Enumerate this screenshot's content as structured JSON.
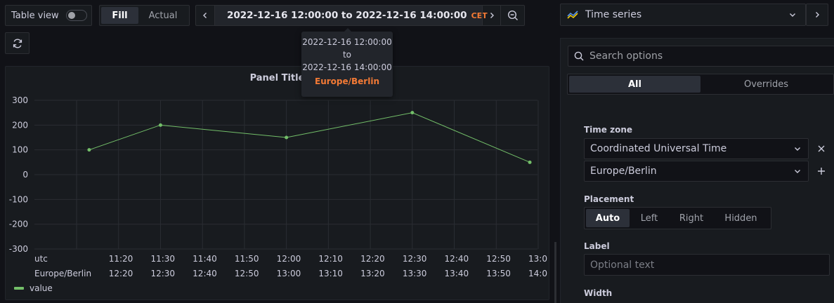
{
  "toolbar": {
    "table_view_label": "Table view",
    "fill_label": "Fill",
    "actual_label": "Actual",
    "time_range": "2022-12-16 12:00:00 to 2022-12-16 14:00:00",
    "tz_badge": "CET"
  },
  "tooltip": {
    "from": "2022-12-16 12:00:00",
    "to_word": "to",
    "to": "2022-12-16 14:00:00",
    "zone": "Europe/Berlin"
  },
  "panel": {
    "title": "Panel Title",
    "legend_label": "value",
    "tz_row1_name": "utc",
    "tz_row2_name": "Europe/Berlin",
    "tz_row1_ticks": [
      "11:20",
      "11:30",
      "11:40",
      "11:50",
      "12:00",
      "12:10",
      "12:20",
      "12:30",
      "12:40",
      "12:50",
      "13:0"
    ],
    "tz_row2_ticks": [
      "12:20",
      "12:30",
      "12:40",
      "12:50",
      "13:00",
      "13:10",
      "13:20",
      "13:30",
      "13:40",
      "13:50",
      "14:0"
    ]
  },
  "chart_data": {
    "type": "line",
    "title": "Panel Title",
    "x": [
      "11:13",
      "11:30",
      "12:00",
      "12:30",
      "12:58"
    ],
    "series": [
      {
        "name": "value",
        "values": [
          100,
          200,
          150,
          250,
          50
        ],
        "color": "#73bf69"
      }
    ],
    "ylim": [
      -300,
      300
    ],
    "yticks": [
      300,
      200,
      100,
      0,
      -100,
      -200,
      -300
    ],
    "grid": true,
    "legend": "bottom-left"
  },
  "options": {
    "viz_name": "Time series",
    "search_placeholder": "Search options",
    "tab_all": "All",
    "tab_overrides": "Overrides",
    "time_zone_label": "Time zone",
    "tz_value_1": "Coordinated Universal Time",
    "tz_value_2": "Europe/Berlin",
    "placement_label": "Placement",
    "placement_options": [
      "Auto",
      "Left",
      "Right",
      "Hidden"
    ],
    "label_label": "Label",
    "label_placeholder": "Optional text",
    "width_label": "Width"
  },
  "colors": {
    "accent_orange": "#f47a35",
    "series_green": "#73bf69"
  }
}
